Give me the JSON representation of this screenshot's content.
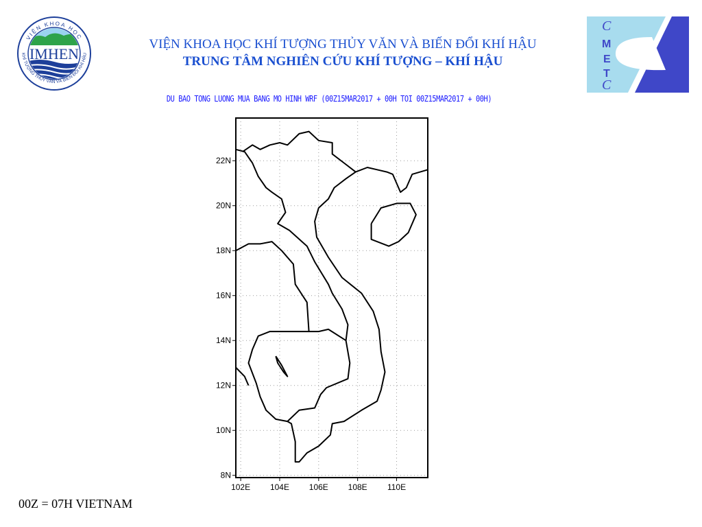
{
  "header": {
    "line1": "VIỆN KHOA HỌC KHÍ TƯỢNG THỦY VĂN VÀ BIẾN ĐỔI KHÍ HẬU",
    "line2": "TRUNG TÂM NGHIÊN CỨU KHÍ TƯỢNG – KHÍ HẬU",
    "left_logo": {
      "text": "IMHEN",
      "ring_text_top": "VIỆN KHOA HỌC",
      "ring_text_bottom": "KHÍ TƯỢNG THỦY VĂN VÀ BIẾN ĐỔI KHÍ HẬU",
      "color": "#1d3f9a"
    },
    "right_logo": {
      "letters": [
        "C",
        "M",
        "E",
        "T",
        "C"
      ],
      "light_color": "#a8dcee",
      "dark_color": "#3f47c8"
    }
  },
  "map": {
    "title": "DU BAO TONG LUONG MUA BANG MO HINH WRF (00Z15MAR2017 + 00H TOI 00Z15MAR2017 + 00H)",
    "lon_ticks": [
      {
        "value": 102,
        "label": "102E"
      },
      {
        "value": 104,
        "label": "104E"
      },
      {
        "value": 106,
        "label": "106E"
      },
      {
        "value": 108,
        "label": "108E"
      },
      {
        "value": 110,
        "label": "110E"
      }
    ],
    "lat_ticks": [
      {
        "value": 8,
        "label": "8N"
      },
      {
        "value": 10,
        "label": "10N"
      },
      {
        "value": 12,
        "label": "12N"
      },
      {
        "value": 14,
        "label": "14N"
      },
      {
        "value": 16,
        "label": "16N"
      },
      {
        "value": 18,
        "label": "18N"
      },
      {
        "value": 20,
        "label": "20N"
      },
      {
        "value": 22,
        "label": "22N"
      }
    ],
    "lon_range": [
      101.75,
      111.6
    ],
    "lat_range": [
      7.9,
      23.9
    ],
    "grid": "dotted"
  },
  "footer": {
    "note": "00Z = 07H VIETNAM"
  }
}
